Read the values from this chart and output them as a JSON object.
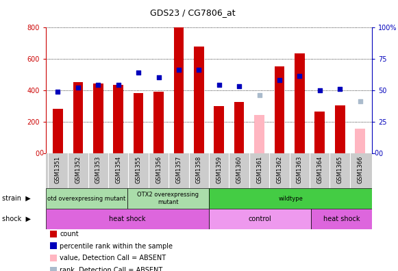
{
  "title": "GDS23 / CG7806_at",
  "samples": [
    "GSM1351",
    "GSM1352",
    "GSM1353",
    "GSM1354",
    "GSM1355",
    "GSM1356",
    "GSM1357",
    "GSM1358",
    "GSM1359",
    "GSM1360",
    "GSM1361",
    "GSM1362",
    "GSM1363",
    "GSM1364",
    "GSM1365",
    "GSM1366"
  ],
  "counts": [
    280,
    450,
    440,
    435,
    380,
    390,
    800,
    675,
    300,
    325,
    null,
    550,
    635,
    265,
    305,
    null
  ],
  "counts_absent": [
    null,
    null,
    null,
    null,
    null,
    null,
    null,
    null,
    null,
    null,
    240,
    null,
    null,
    null,
    null,
    155
  ],
  "percentile_ranks": [
    49,
    52,
    54,
    54,
    64,
    60,
    66,
    66,
    54,
    53,
    null,
    58,
    61,
    50,
    51,
    null
  ],
  "percentile_ranks_absent": [
    null,
    null,
    null,
    null,
    null,
    null,
    null,
    null,
    null,
    null,
    46,
    null,
    null,
    null,
    null,
    41
  ],
  "ylim_left": [
    0,
    800
  ],
  "ylim_right": [
    0,
    100
  ],
  "yticks_left": [
    0,
    200,
    400,
    600,
    800
  ],
  "yticks_right": [
    0,
    25,
    50,
    75,
    100
  ],
  "ytick_right_labels": [
    "0",
    "25",
    "50",
    "75",
    "100%"
  ],
  "bar_color_present": "#CC0000",
  "bar_color_absent": "#FFB6C1",
  "dot_color_present": "#0000BB",
  "dot_color_absent": "#AABBCC",
  "bar_width": 0.5,
  "dot_size": 25,
  "background_color": "#FFFFFF",
  "plot_bg_color": "#FFFFFF",
  "xtick_bg_color": "#CCCCCC",
  "strain_regions": [
    {
      "label": "otd overexpressing mutant",
      "start": 0,
      "end": 4,
      "color": "#AADDAA"
    },
    {
      "label": "OTX2 overexpressing\nmutant",
      "start": 4,
      "end": 8,
      "color": "#AADDAA"
    },
    {
      "label": "wildtype",
      "start": 8,
      "end": 16,
      "color": "#44CC44"
    }
  ],
  "shock_regions": [
    {
      "label": "heat shock",
      "start": 0,
      "end": 8,
      "color": "#DD66DD"
    },
    {
      "label": "control",
      "start": 8,
      "end": 13,
      "color": "#DD66DD"
    },
    {
      "label": "heat shock",
      "start": 13,
      "end": 16,
      "color": "#DD66DD"
    }
  ],
  "shock_control_color": "#EE88EE",
  "legend_items": [
    {
      "symbol": "s",
      "color": "#CC0000",
      "label": "count"
    },
    {
      "symbol": "s",
      "color": "#0000BB",
      "label": "percentile rank within the sample"
    },
    {
      "symbol": "s",
      "color": "#FFB6C1",
      "label": "value, Detection Call = ABSENT"
    },
    {
      "symbol": "s",
      "color": "#AABBCC",
      "label": "rank, Detection Call = ABSENT"
    }
  ]
}
